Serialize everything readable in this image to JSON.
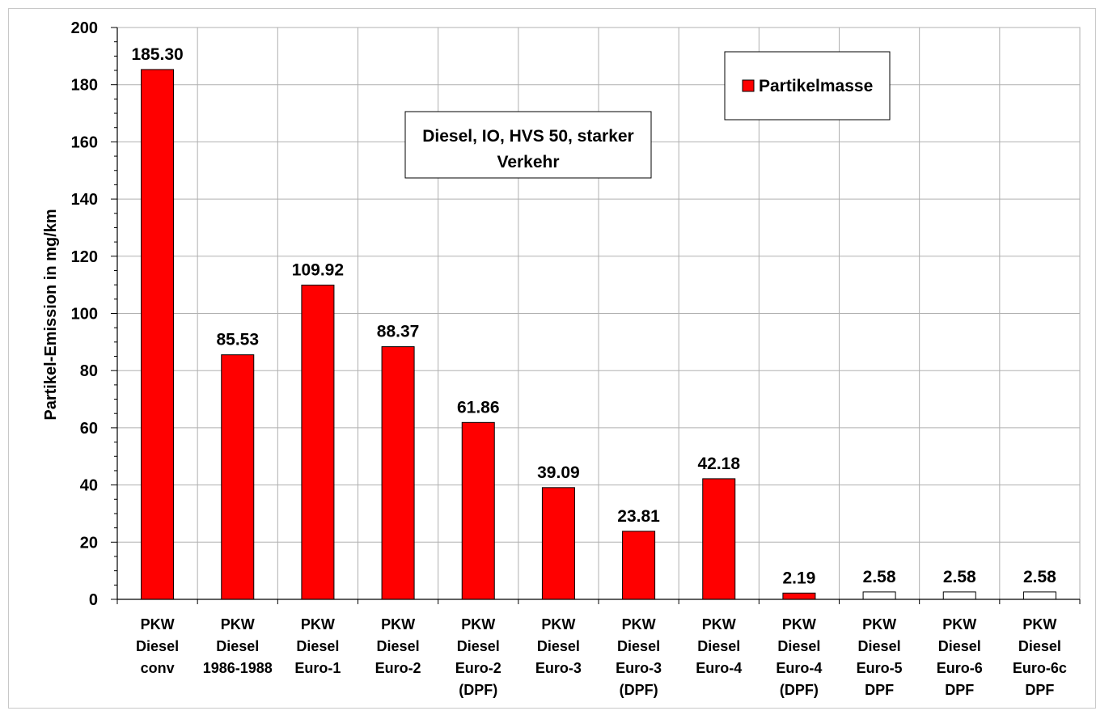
{
  "chart_data": {
    "type": "bar",
    "title": "",
    "ylabel": "Partikel-Emission in mg/km",
    "xlabel": "",
    "ylim": [
      0,
      200
    ],
    "yticks": [
      0,
      20,
      40,
      60,
      80,
      100,
      120,
      140,
      160,
      180,
      200
    ],
    "grid": true,
    "legend": {
      "position": "top-right",
      "entries": [
        {
          "name": "Partikelmasse",
          "color": "#ff0000"
        }
      ]
    },
    "annotation": [
      "Diesel, IO, HVS 50, starker",
      "Verkehr"
    ],
    "categories": [
      [
        "PKW",
        "Diesel",
        "conv"
      ],
      [
        "PKW",
        "Diesel",
        "1986-1988"
      ],
      [
        "PKW",
        "Diesel",
        "Euro-1"
      ],
      [
        "PKW",
        "Diesel",
        "Euro-2"
      ],
      [
        "PKW",
        "Diesel",
        "Euro-2",
        "(DPF)"
      ],
      [
        "PKW",
        "Diesel",
        "Euro-3"
      ],
      [
        "PKW",
        "Diesel",
        "Euro-3",
        "(DPF)"
      ],
      [
        "PKW",
        "Diesel",
        "Euro-4"
      ],
      [
        "PKW",
        "Diesel",
        "Euro-4",
        "(DPF)"
      ],
      [
        "PKW",
        "Diesel",
        "Euro-5",
        "DPF"
      ],
      [
        "PKW",
        "Diesel",
        "Euro-6",
        "DPF"
      ],
      [
        "PKW",
        "Diesel",
        "Euro-6c",
        "DPF"
      ]
    ],
    "series": [
      {
        "name": "Partikelmasse",
        "values": [
          185.3,
          85.53,
          109.92,
          88.37,
          61.86,
          39.09,
          23.81,
          42.18,
          2.19,
          2.58,
          2.58,
          2.58
        ],
        "labels": [
          "185.30",
          "85.53",
          "109.92",
          "88.37",
          "61.86",
          "39.09",
          "23.81",
          "42.18",
          "2.19",
          "2.58",
          "2.58",
          "2.58"
        ],
        "colors": [
          "#ff0000",
          "#ff0000",
          "#ff0000",
          "#ff0000",
          "#ff0000",
          "#ff0000",
          "#ff0000",
          "#ff0000",
          "#ff0000",
          "#ffffff",
          "#ffffff",
          "#ffffff"
        ]
      }
    ]
  }
}
